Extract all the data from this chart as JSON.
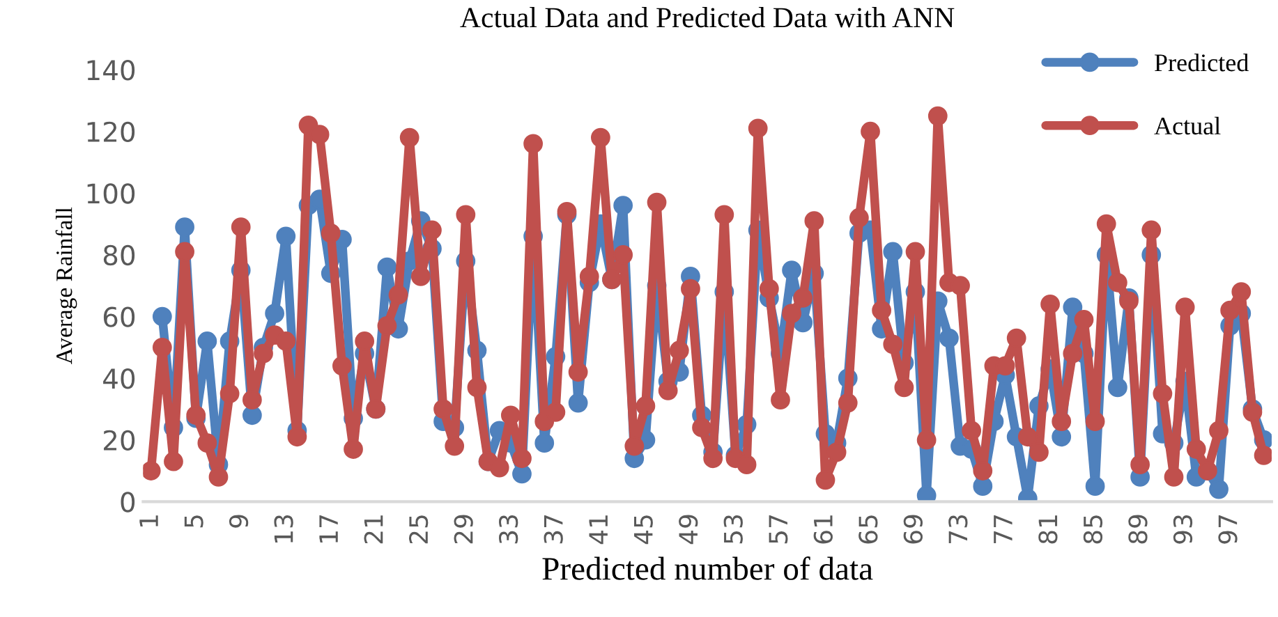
{
  "chart_data": {
    "type": "line",
    "title": "Actual Data and Predicted Data with ANN",
    "xlabel": "Predicted number of data",
    "ylabel": "Average Rainfall",
    "categories": [
      "1",
      null,
      null,
      null,
      "5",
      null,
      null,
      null,
      "9",
      null,
      null,
      null,
      "13",
      null,
      null,
      null,
      "17",
      null,
      null,
      null,
      "21",
      null,
      null,
      null,
      "25",
      null,
      null,
      null,
      "29",
      null,
      null,
      null,
      "33",
      null,
      null,
      null,
      "37",
      null,
      null,
      null,
      "41",
      null,
      null,
      null,
      "45",
      null,
      null,
      null,
      "49",
      null,
      null,
      null,
      "53",
      null,
      null,
      null,
      "57",
      null,
      null,
      null,
      "61",
      null,
      null,
      null,
      "65",
      null,
      null,
      null,
      "69",
      null,
      null,
      null,
      "73",
      null,
      null,
      null,
      "77",
      null,
      null,
      null,
      "81",
      null,
      null,
      null,
      "85",
      null,
      null,
      null,
      "89",
      null,
      null,
      null,
      "93",
      null,
      null,
      null,
      "97",
      null,
      null,
      null
    ],
    "series": [
      {
        "name": "Predicted",
        "color": "#4f81bd",
        "values": [
          null,
          60,
          24,
          89,
          27,
          52,
          12,
          52,
          75,
          28,
          50,
          61,
          86,
          23,
          96,
          98,
          74,
          85,
          27,
          48,
          30,
          76,
          56,
          78,
          91,
          82,
          26,
          24,
          78,
          49,
          13,
          23,
          19,
          9,
          86,
          19,
          47,
          93,
          32,
          71,
          90,
          72,
          96,
          14,
          20,
          70,
          39,
          42,
          73,
          28,
          16,
          68,
          15,
          25,
          88,
          66,
          48,
          75,
          58,
          74,
          22,
          19,
          40,
          87,
          88,
          56,
          81,
          45,
          68,
          2,
          65,
          53,
          18,
          17,
          5,
          26,
          41,
          21,
          1,
          31,
          43,
          21,
          63,
          48,
          5,
          80,
          37,
          66,
          8,
          80,
          22,
          19,
          39,
          8,
          10,
          4,
          57,
          61,
          30,
          20
        ]
      },
      {
        "name": "Actual",
        "color": "#c0504d",
        "values": [
          10,
          50,
          13,
          81,
          28,
          19,
          8,
          35,
          89,
          33,
          48,
          54,
          52,
          21,
          122,
          119,
          87,
          44,
          17,
          52,
          30,
          57,
          67,
          118,
          73,
          88,
          30,
          18,
          93,
          37,
          13,
          11,
          28,
          14,
          116,
          26,
          29,
          94,
          42,
          73,
          118,
          72,
          80,
          18,
          31,
          97,
          36,
          49,
          69,
          24,
          14,
          93,
          14,
          12,
          121,
          69,
          33,
          61,
          66,
          91,
          7,
          16,
          32,
          92,
          120,
          62,
          51,
          37,
          81,
          20,
          125,
          71,
          70,
          23,
          10,
          44,
          44,
          53,
          21,
          16,
          64,
          26,
          48,
          59,
          26,
          90,
          71,
          65,
          12,
          88,
          35,
          8,
          63,
          17,
          10,
          23,
          62,
          68,
          29,
          15
        ]
      }
    ],
    "ylim": [
      0,
      140
    ],
    "yticks": [
      0,
      20,
      40,
      60,
      80,
      100,
      120,
      140
    ],
    "grid": false,
    "legend": "top right",
    "marker": "circle",
    "line_style": "solid"
  }
}
